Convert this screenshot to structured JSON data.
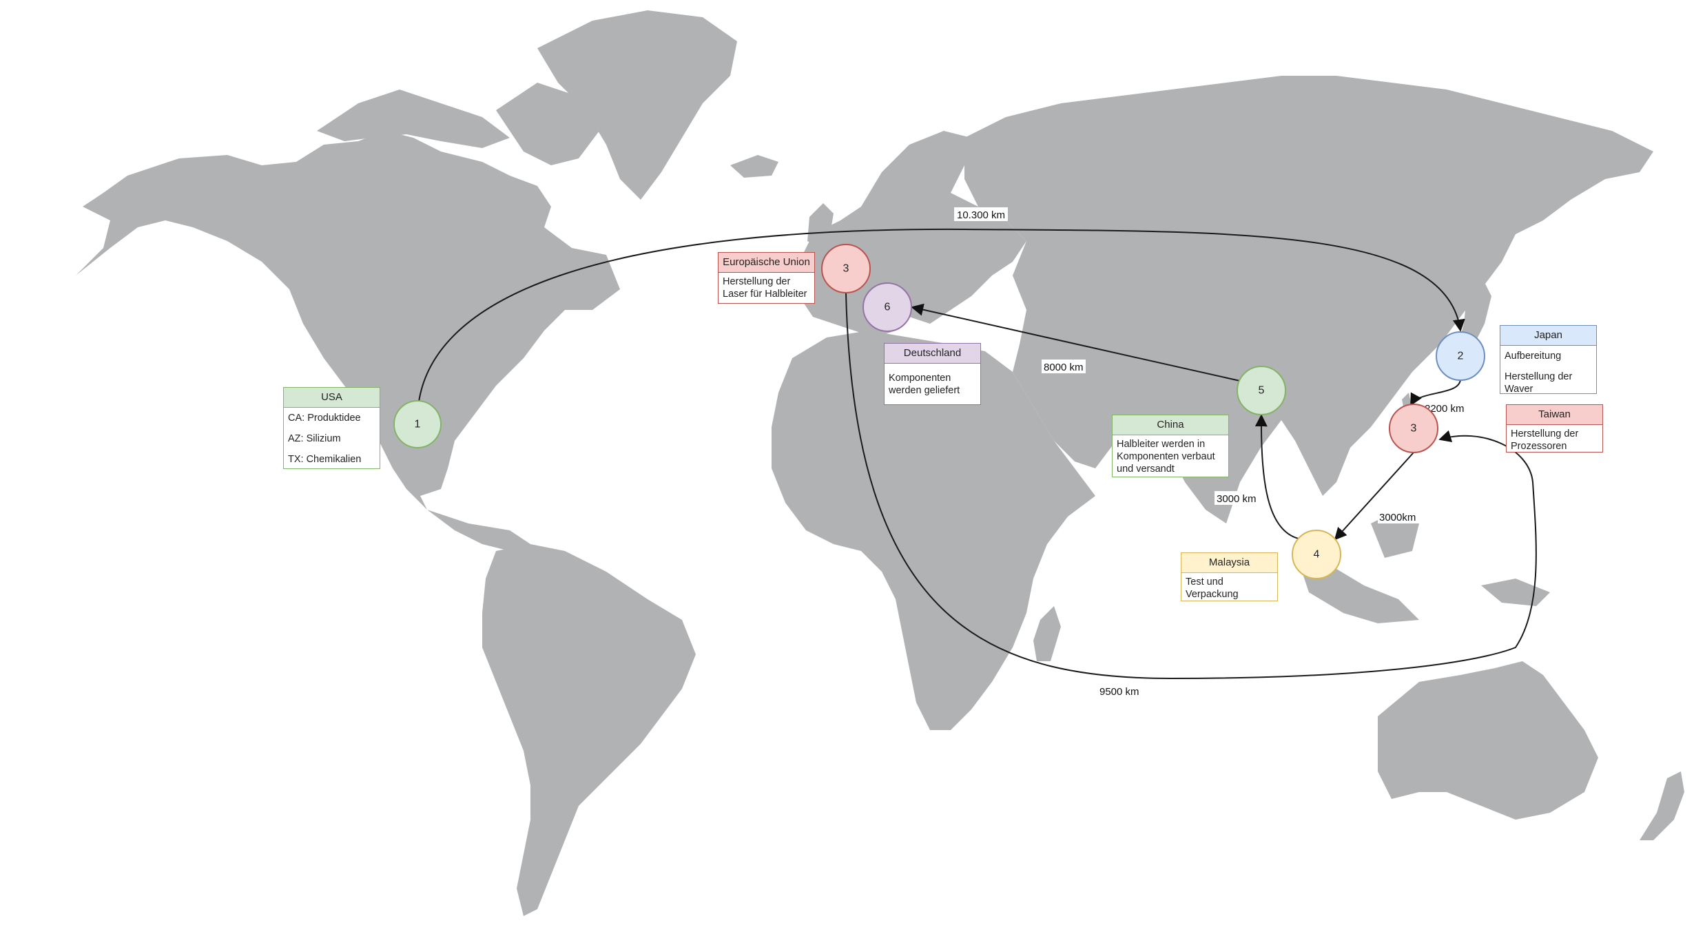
{
  "colors": {
    "land": "#b1b2b4",
    "green_fill": "#d5e8d4",
    "green_stroke": "#82b366",
    "red_fill": "#f8cecc",
    "red_stroke": "#b85450",
    "blue_fill": "#dae8fc",
    "blue_stroke": "#6c8ebf",
    "purple_fill": "#e1d5e7",
    "purple_stroke": "#9673a6",
    "yellow_fill": "#fff2cc",
    "yellow_stroke": "#d6b656"
  },
  "nodes": {
    "usa": "1",
    "japan": "2",
    "eu": "3",
    "taiwan": "3",
    "malaysia": "4",
    "china": "5",
    "germany": "6"
  },
  "cards": {
    "usa": {
      "title": "USA",
      "lines": [
        "CA: Produktidee",
        "AZ: Silizium",
        "TX: Chemikalien"
      ]
    },
    "eu": {
      "title": "Europäische Union",
      "lines": [
        "Herstellung der Laser für Halbleiter"
      ]
    },
    "germany": {
      "title": "Deutschland",
      "lines": [
        "Komponenten werden geliefert"
      ]
    },
    "china": {
      "title": "China",
      "lines": [
        "Halbleiter werden in Komponenten verbaut und versandt"
      ]
    },
    "malaysia": {
      "title": "Malaysia",
      "lines": [
        "Test und Verpackung"
      ]
    },
    "japan": {
      "title": "Japan",
      "lines": [
        "Aufbereitung",
        "Herstellung der Waver"
      ]
    },
    "taiwan": {
      "title": "Taiwan",
      "lines": [
        "Herstellung der Prozessoren"
      ]
    }
  },
  "distances": {
    "usa_japan": "10.300 km",
    "japan_taiwan": "2200 km",
    "china_germany": "8000 km",
    "malaysia_china": "3000 km",
    "taiwan_malaysia": "3000km",
    "eu_taiwan": "9500 km"
  }
}
